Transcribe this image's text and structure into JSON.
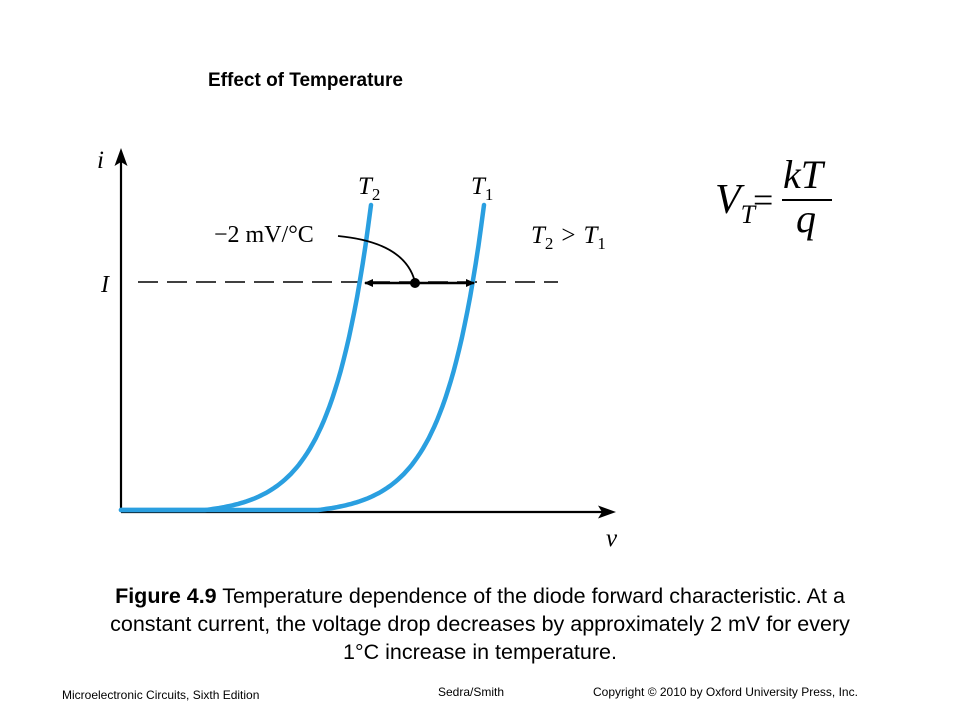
{
  "slide": {
    "title": "Effect of Temperature"
  },
  "diagram": {
    "axis_y_label": "i",
    "axis_x_label": "v",
    "current_level_label": "I",
    "curve_left_label": {
      "base": "T",
      "sub": "2"
    },
    "curve_right_label": {
      "base": "T",
      "sub": "1"
    },
    "condition_label": {
      "a": "T",
      "a_sub": "2",
      "op": ">",
      "b": "T",
      "b_sub": "1"
    },
    "shift_label": "−2 mV/°C",
    "curve_color": "#2a9fe0"
  },
  "equation": {
    "lhs": "V",
    "lhs_sub": "T",
    "eq": "=",
    "numerator": "kT",
    "denominator": "q"
  },
  "caption": {
    "figure_label": "Figure 4.9",
    "text": " Temperature dependence of the diode forward characteristic. At a constant current, the voltage drop decreases by approximately 2 mV for every 1°C increase in temperature."
  },
  "footer": {
    "left": "Microelectronic Circuits, Sixth Edition",
    "middle": "Sedra/Smith",
    "right": "Copyright © 2010 by Oxford University Press, Inc."
  }
}
